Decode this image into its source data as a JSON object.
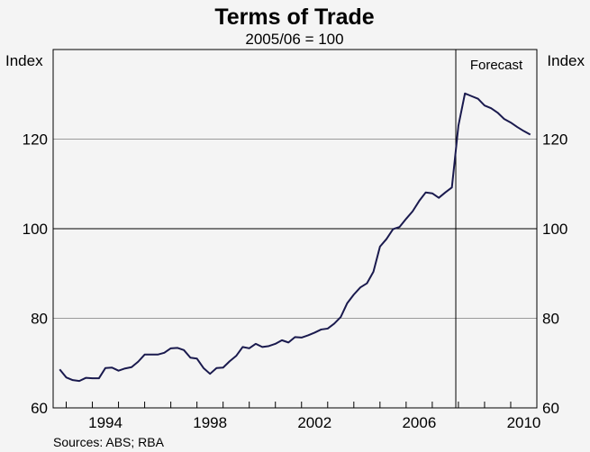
{
  "chart_data": {
    "type": "line",
    "title": "Terms of Trade",
    "subtitle": "2005/06 = 100",
    "ylabel_left": "Index",
    "ylabel_right": "Index",
    "source": "Sources: ABS; RBA",
    "annotation": "Forecast",
    "forecast_start": 2007.9,
    "xlim": [
      1992.5,
      2011.0
    ],
    "ylim": [
      60,
      140
    ],
    "yticks": [
      60,
      80,
      100,
      120
    ],
    "xticks": [
      1994,
      1998,
      2002,
      2006,
      2010
    ],
    "reference_line": 100,
    "grid": true,
    "colors": {
      "line": "#1a1a4e",
      "background": "#f4f4f4",
      "grid": "#9a9a9a",
      "axis": "#000000"
    },
    "series": [
      {
        "x": [
          1992.75,
          1993.0,
          1993.25,
          1993.5,
          1993.75,
          1994.0,
          1994.25,
          1994.5,
          1994.75,
          1995.0,
          1995.25,
          1995.5,
          1995.75,
          1996.0,
          1996.25,
          1996.5,
          1996.75,
          1997.0,
          1997.25,
          1997.5,
          1997.75,
          1998.0,
          1998.25,
          1998.5,
          1998.75,
          1999.0,
          1999.25,
          1999.5,
          1999.75,
          2000.0,
          2000.25,
          2000.5,
          2000.75,
          2001.0,
          2001.25,
          2001.5,
          2001.75,
          2002.0,
          2002.25,
          2002.5,
          2002.75,
          2003.0,
          2003.25,
          2003.5,
          2003.75,
          2004.0,
          2004.25,
          2004.5,
          2004.75,
          2005.0,
          2005.25,
          2005.5,
          2005.75,
          2006.0,
          2006.25,
          2006.5,
          2006.75,
          2007.0,
          2007.25,
          2007.5,
          2007.75,
          2008.0,
          2008.25,
          2008.5,
          2008.75,
          2009.0,
          2009.25,
          2009.5,
          2009.75,
          2010.0,
          2010.25,
          2010.5,
          2010.75
        ],
        "values": [
          68.6,
          66.8,
          66.2,
          66.0,
          66.7,
          66.6,
          66.6,
          68.9,
          69.0,
          68.3,
          68.8,
          69.1,
          70.3,
          71.9,
          71.9,
          71.9,
          72.3,
          73.3,
          73.4,
          72.9,
          71.2,
          71.0,
          68.9,
          67.6,
          68.9,
          69.0,
          70.4,
          71.6,
          73.6,
          73.3,
          74.3,
          73.6,
          73.8,
          74.3,
          75.1,
          74.6,
          75.8,
          75.7,
          76.2,
          76.8,
          77.5,
          77.7,
          78.8,
          80.3,
          83.4,
          85.3,
          86.9,
          87.8,
          90.4,
          96.0,
          97.7,
          99.9,
          100.4,
          102.2,
          103.9,
          106.2,
          108.1,
          107.9,
          106.9,
          108.1,
          109.2,
          123.0,
          130.2,
          129.6,
          129.0,
          127.5,
          126.9,
          125.9,
          124.5,
          123.7,
          122.7,
          121.8,
          121.0
        ]
      }
    ]
  }
}
